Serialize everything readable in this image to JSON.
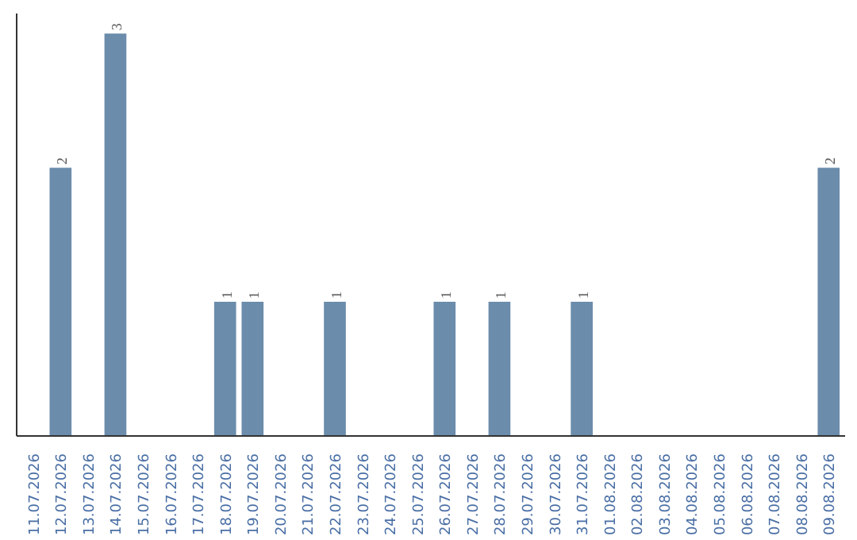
{
  "chart_data": {
    "type": "bar",
    "categories": [
      "11.07.2026",
      "12.07.2026",
      "13.07.2026",
      "14.07.2026",
      "15.07.2026",
      "16.07.2026",
      "17.07.2026",
      "18.07.2026",
      "19.07.2026",
      "20.07.2026",
      "21.07.2026",
      "22.07.2026",
      "23.07.2026",
      "24.07.2026",
      "25.07.2026",
      "26.07.2026",
      "27.07.2026",
      "28.07.2026",
      "29.07.2026",
      "30.07.2026",
      "31.07.2026",
      "01.08.2026",
      "02.08.2026",
      "03.08.2026",
      "04.08.2026",
      "05.08.2026",
      "06.08.2026",
      "07.08.2026",
      "08.08.2026",
      "09.08.2026"
    ],
    "values": [
      0,
      2,
      0,
      3,
      0,
      0,
      0,
      1,
      1,
      0,
      0,
      1,
      0,
      0,
      0,
      1,
      0,
      1,
      0,
      0,
      1,
      0,
      0,
      0,
      0,
      0,
      0,
      0,
      0,
      2
    ],
    "value_labels": [
      null,
      "2",
      null,
      "3",
      null,
      null,
      null,
      "1",
      "1",
      null,
      null,
      "1",
      null,
      null,
      null,
      "1",
      null,
      "1",
      null,
      null,
      "1",
      null,
      null,
      null,
      null,
      null,
      null,
      null,
      null,
      "2"
    ],
    "color": "#6b8cab",
    "grid": false
  }
}
